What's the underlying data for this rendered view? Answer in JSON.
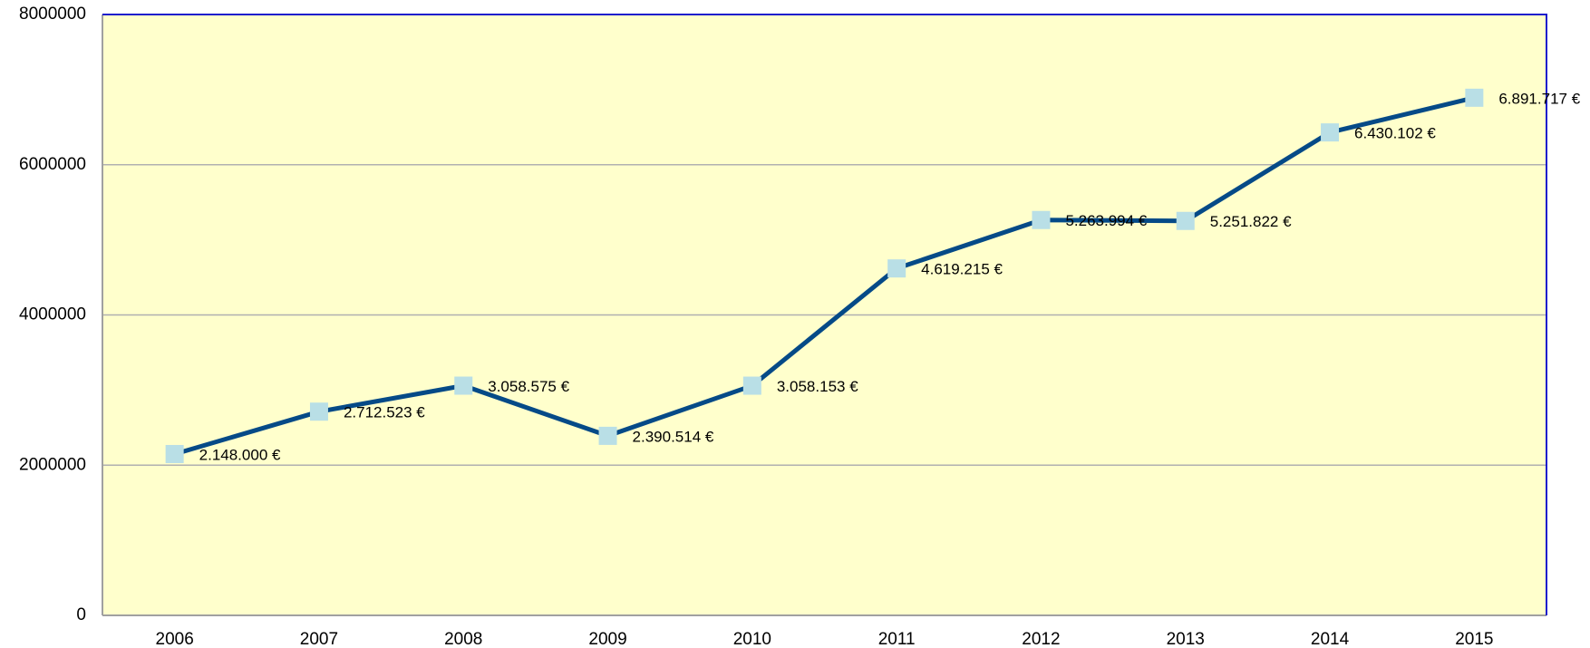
{
  "chart_data": {
    "type": "line",
    "categories": [
      "2006",
      "2007",
      "2008",
      "2009",
      "2010",
      "2011",
      "2012",
      "2013",
      "2014",
      "2015"
    ],
    "series": [
      {
        "color": "#054a87",
        "marker_color": "#b9dfe6",
        "values": [
          2148000,
          2712523,
          3058575,
          2390514,
          3058153,
          4619215,
          5263994,
          5251822,
          6430102,
          6891717
        ],
        "value_labels": [
          "2.148.000 €",
          "2.712.523 €",
          "3.058.575 €",
          "2.390.514 €",
          "3.058.153 €",
          "4.619.215 €",
          "5.263.994 €",
          "5.251.822 €",
          "6.430.102 €",
          "6.891.717 €"
        ]
      }
    ],
    "ylim": [
      0,
      8000000
    ],
    "yticks": [
      0,
      2000000,
      4000000,
      6000000,
      8000000
    ],
    "grid": true,
    "plot_background": "#ffffcc"
  }
}
